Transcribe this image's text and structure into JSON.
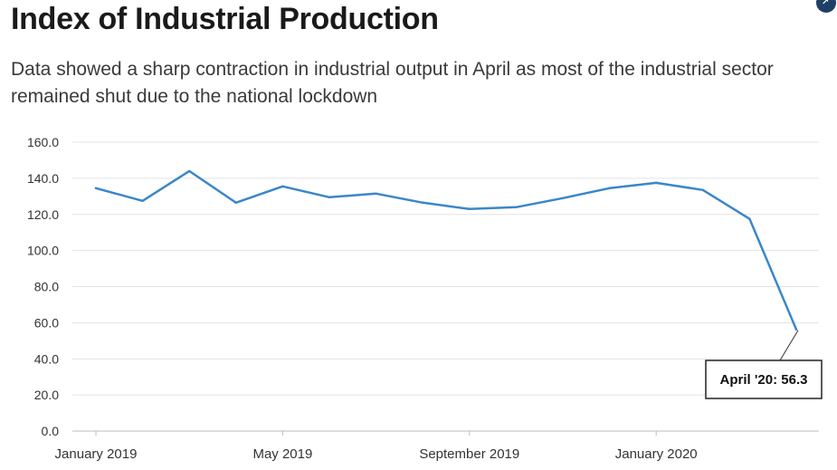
{
  "header": {
    "title": "Index of Industrial Production",
    "subtitle": "Data showed a sharp contraction in industrial output in April as most of the industrial sector remained shut due to the national lockdown"
  },
  "badge": {
    "icon": "share-icon",
    "color": "#1f3f66"
  },
  "chart_data": {
    "type": "line",
    "x": [
      "Jan 2019",
      "Feb 2019",
      "Mar 2019",
      "Apr 2019",
      "May 2019",
      "Jun 2019",
      "Jul 2019",
      "Aug 2019",
      "Sep 2019",
      "Oct 2019",
      "Nov 2019",
      "Dec 2019",
      "Jan 2020",
      "Feb 2020",
      "Mar 2020",
      "Apr 2020"
    ],
    "series": [
      {
        "values": [
          134.5,
          127.5,
          144.0,
          126.5,
          135.5,
          129.5,
          131.5,
          126.5,
          123.0,
          124.0,
          129.0,
          134.5,
          137.5,
          133.5,
          117.5,
          56.3
        ],
        "color": "#3a87c8"
      }
    ],
    "xticks": [
      {
        "index": 0,
        "label": "January 2019"
      },
      {
        "index": 4,
        "label": "May 2019"
      },
      {
        "index": 8,
        "label": "September 2019"
      },
      {
        "index": 12,
        "label": "January 2020"
      }
    ],
    "yticks": [
      "0.0",
      "20.0",
      "40.0",
      "60.0",
      "80.0",
      "100.0",
      "120.0",
      "140.0",
      "160.0"
    ],
    "ylim": [
      0,
      160
    ],
    "grid": true,
    "annotation": {
      "index": 15,
      "text": "April '20: 56.3"
    }
  }
}
